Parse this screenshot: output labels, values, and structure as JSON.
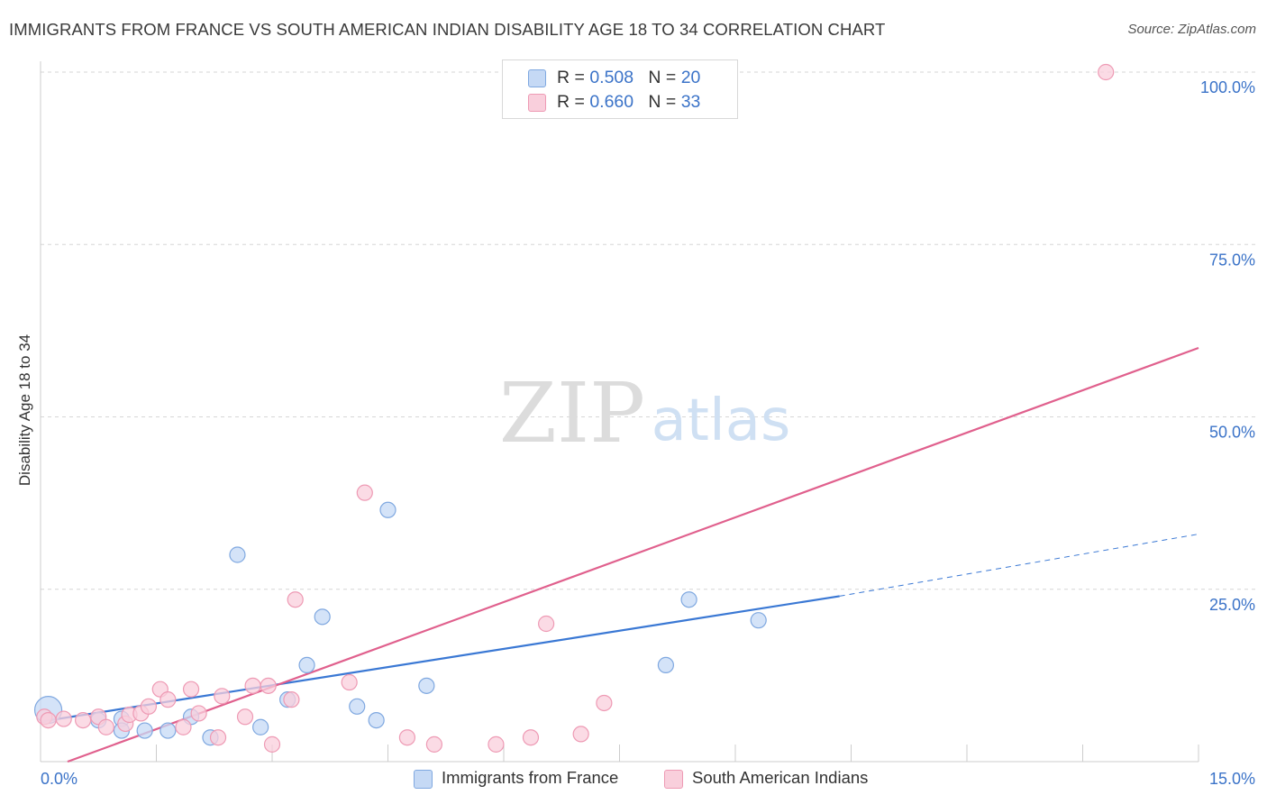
{
  "title": "IMMIGRANTS FROM FRANCE VS SOUTH AMERICAN INDIAN DISABILITY AGE 18 TO 34 CORRELATION CHART",
  "source": "Source: ZipAtlas.com",
  "watermark": {
    "zip": "ZIP",
    "atlas": "atlas"
  },
  "legend": {
    "series1": {
      "r_label": "R = ",
      "r_value": "0.508",
      "n_label": "N = ",
      "n_value": "20"
    },
    "series2": {
      "r_label": "R = ",
      "r_value": "0.660",
      "n_label": "N = ",
      "n_value": "33"
    }
  },
  "bottom_legend": {
    "series1": "Immigrants from France",
    "series2": "South American Indians"
  },
  "colors": {
    "blue_fill": "#c5d9f5",
    "blue_stroke": "#7fa8e0",
    "blue_line": "#3a78d4",
    "pink_fill": "#f9cfdc",
    "pink_stroke": "#ee9ab4",
    "pink_line": "#e0608d",
    "axis_text": "#3b73c8",
    "grid": "#d6d6d6"
  },
  "chart_data": {
    "type": "scatter",
    "title": "IMMIGRANTS FROM FRANCE VS SOUTH AMERICAN INDIAN DISABILITY AGE 18 TO 34 CORRELATION CHART",
    "xlabel": "",
    "ylabel": "Disability Age 18 to 34",
    "xlim": [
      0,
      15
    ],
    "ylim": [
      0,
      100
    ],
    "x_tick_labels": [
      "0.0%",
      "15.0%"
    ],
    "y_tick_labels": [
      "100.0%",
      "75.0%",
      "50.0%",
      "25.0%"
    ],
    "y_ticks": [
      100,
      75,
      50,
      25
    ],
    "grid": true,
    "series": [
      {
        "name": "Immigrants from France",
        "color": "blue",
        "points": [
          [
            0.1,
            7.5
          ],
          [
            0.75,
            6.0
          ],
          [
            1.05,
            6.2
          ],
          [
            1.05,
            4.5
          ],
          [
            1.35,
            4.5
          ],
          [
            1.65,
            4.5
          ],
          [
            1.95,
            6.5
          ],
          [
            2.2,
            3.5
          ],
          [
            2.55,
            30.0
          ],
          [
            2.85,
            5.0
          ],
          [
            3.2,
            9.0
          ],
          [
            3.45,
            14.0
          ],
          [
            3.65,
            21.0
          ],
          [
            4.1,
            8.0
          ],
          [
            4.35,
            6.0
          ],
          [
            4.5,
            36.5
          ],
          [
            5.0,
            11.0
          ],
          [
            8.1,
            14.0
          ],
          [
            8.4,
            23.5
          ],
          [
            9.3,
            20.5
          ]
        ],
        "trend": {
          "x": [
            0.0,
            10.35
          ],
          "y": [
            5.8,
            24.0
          ],
          "dashed_to": [
            15.0,
            33.0
          ]
        }
      },
      {
        "name": "South American Indians",
        "color": "pink",
        "points": [
          [
            0.05,
            6.5
          ],
          [
            0.3,
            6.2
          ],
          [
            0.55,
            6.0
          ],
          [
            0.75,
            6.5
          ],
          [
            0.85,
            5.0
          ],
          [
            1.1,
            5.5
          ],
          [
            1.15,
            6.8
          ],
          [
            1.3,
            7.0
          ],
          [
            1.4,
            8.0
          ],
          [
            1.55,
            10.5
          ],
          [
            1.65,
            9.0
          ],
          [
            1.85,
            5.0
          ],
          [
            1.95,
            10.5
          ],
          [
            2.05,
            7.0
          ],
          [
            2.3,
            3.5
          ],
          [
            2.35,
            9.5
          ],
          [
            2.65,
            6.5
          ],
          [
            2.75,
            11.0
          ],
          [
            2.95,
            11.0
          ],
          [
            3.0,
            2.5
          ],
          [
            3.25,
            9.0
          ],
          [
            3.3,
            23.5
          ],
          [
            4.0,
            11.5
          ],
          [
            4.2,
            39.0
          ],
          [
            4.75,
            3.5
          ],
          [
            5.1,
            2.5
          ],
          [
            5.9,
            2.5
          ],
          [
            6.35,
            3.5
          ],
          [
            6.55,
            20.0
          ],
          [
            7.0,
            4.0
          ],
          [
            7.3,
            8.5
          ],
          [
            13.8,
            100.0
          ],
          [
            0.1,
            6.0
          ]
        ],
        "trend": {
          "x": [
            0.35,
            15.0
          ],
          "y": [
            0.0,
            60.0
          ]
        }
      }
    ]
  }
}
